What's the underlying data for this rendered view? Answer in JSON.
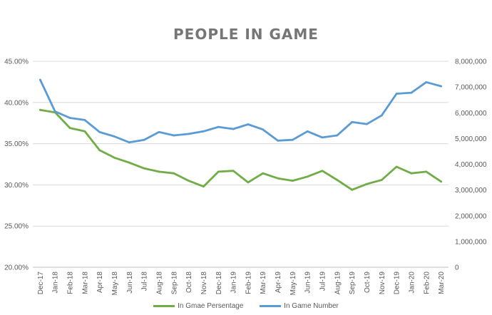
{
  "chart_data": {
    "type": "line",
    "title": "PEOPLE IN GAME",
    "categories": [
      "Dec-17",
      "Jan-18",
      "Feb-18",
      "Mar-18",
      "Apr-18",
      "May-18",
      "Jun-18",
      "Jul-18",
      "Aug-18",
      "Sep-18",
      "Oct-18",
      "Nov-18",
      "Dec-18",
      "Jan-19",
      "Feb-19",
      "Mar-19",
      "Apr-19",
      "May-19",
      "Jun-19",
      "Jul-19",
      "Aug-19",
      "Sep-19",
      "Oct-19",
      "Nov-19",
      "Dec-19",
      "Jan-20",
      "Feb-20",
      "Mar-20"
    ],
    "left_axis": {
      "ylim": [
        0.2,
        0.45
      ],
      "ticks": [
        0.2,
        0.25,
        0.3,
        0.35,
        0.4,
        0.45
      ],
      "tick_labels": [
        "20.00%",
        "25.00%",
        "30.00%",
        "35.00%",
        "40.00%",
        "45.00%"
      ]
    },
    "right_axis": {
      "ylim": [
        0,
        8000000
      ],
      "ticks": [
        0,
        1000000,
        2000000,
        3000000,
        4000000,
        5000000,
        6000000,
        7000000,
        8000000
      ],
      "tick_labels": [
        "0",
        "1,000,000",
        "2,000,000",
        "3,000,000",
        "4,000,000",
        "5,000,000",
        "6,000,000",
        "7,000,000",
        "8,000,000"
      ]
    },
    "series": [
      {
        "name": "In Gmae Persentage",
        "axis": "left",
        "color": "#70ad47",
        "values": [
          0.391,
          0.388,
          0.369,
          0.365,
          0.342,
          0.333,
          0.327,
          0.32,
          0.316,
          0.314,
          0.305,
          0.298,
          0.316,
          0.317,
          0.303,
          0.314,
          0.308,
          0.305,
          0.31,
          0.317,
          0.306,
          0.294,
          0.301,
          0.306,
          0.322,
          0.314,
          0.316,
          0.304
        ]
      },
      {
        "name": "In Game Number",
        "axis": "right",
        "color": "#5b9bd5",
        "values": [
          7280000,
          6050000,
          5800000,
          5720000,
          5250000,
          5080000,
          4850000,
          4950000,
          5250000,
          5120000,
          5180000,
          5280000,
          5450000,
          5370000,
          5550000,
          5350000,
          4920000,
          4950000,
          5280000,
          5040000,
          5120000,
          5640000,
          5560000,
          5900000,
          6740000,
          6780000,
          7190000,
          7030000
        ]
      }
    ],
    "grid": true,
    "legend_position": "bottom"
  }
}
